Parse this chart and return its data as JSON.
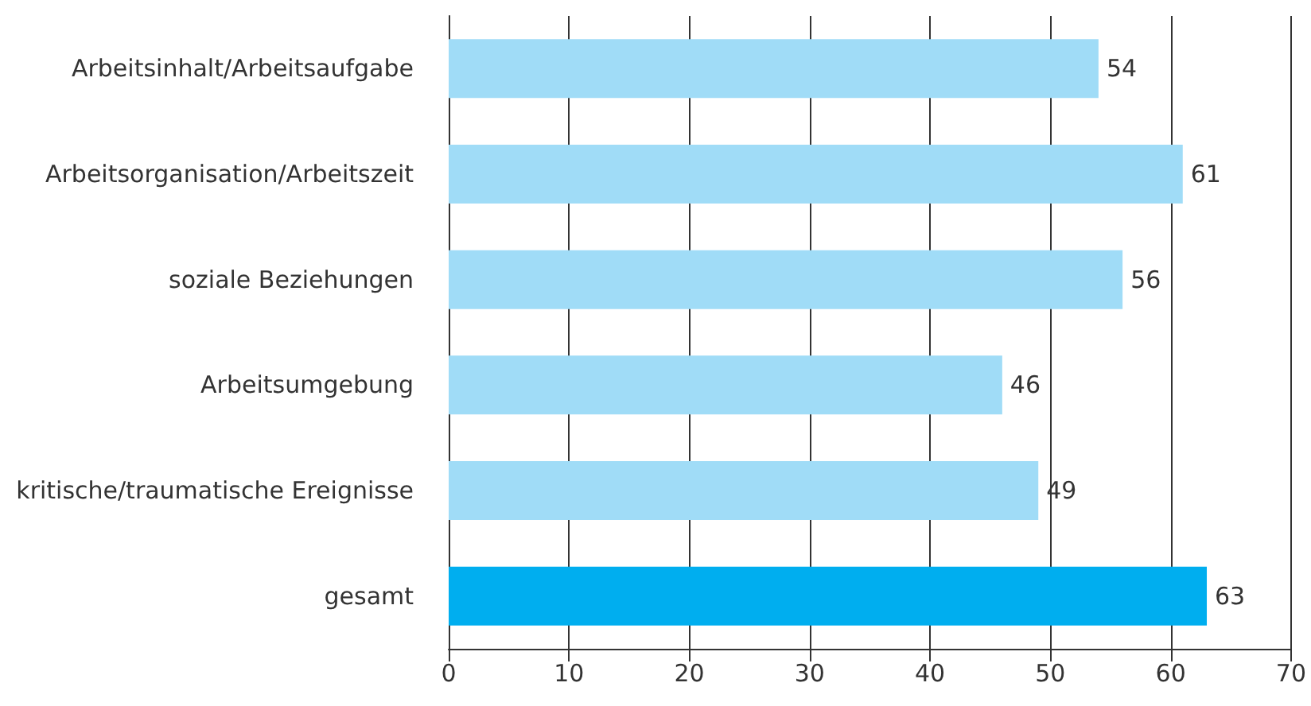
{
  "chart_data": {
    "type": "bar",
    "orientation": "horizontal",
    "categories": [
      "Arbeitsinhalt/Arbeitsaufgabe",
      "Arbeitsorganisation/Arbeitszeit",
      "soziale Beziehungen",
      "Arbeitsumgebung",
      "kritische/traumatische Ereignisse",
      "gesamt"
    ],
    "values": [
      54,
      61,
      56,
      46,
      49,
      63
    ],
    "colors": [
      "#a0dcf7",
      "#a0dcf7",
      "#a0dcf7",
      "#a0dcf7",
      "#a0dcf7",
      "#00aeef"
    ],
    "xlim": [
      0,
      70
    ],
    "xticks": [
      0,
      10,
      20,
      30,
      40,
      50,
      60,
      70
    ],
    "grid": "x",
    "data_labels": true
  }
}
